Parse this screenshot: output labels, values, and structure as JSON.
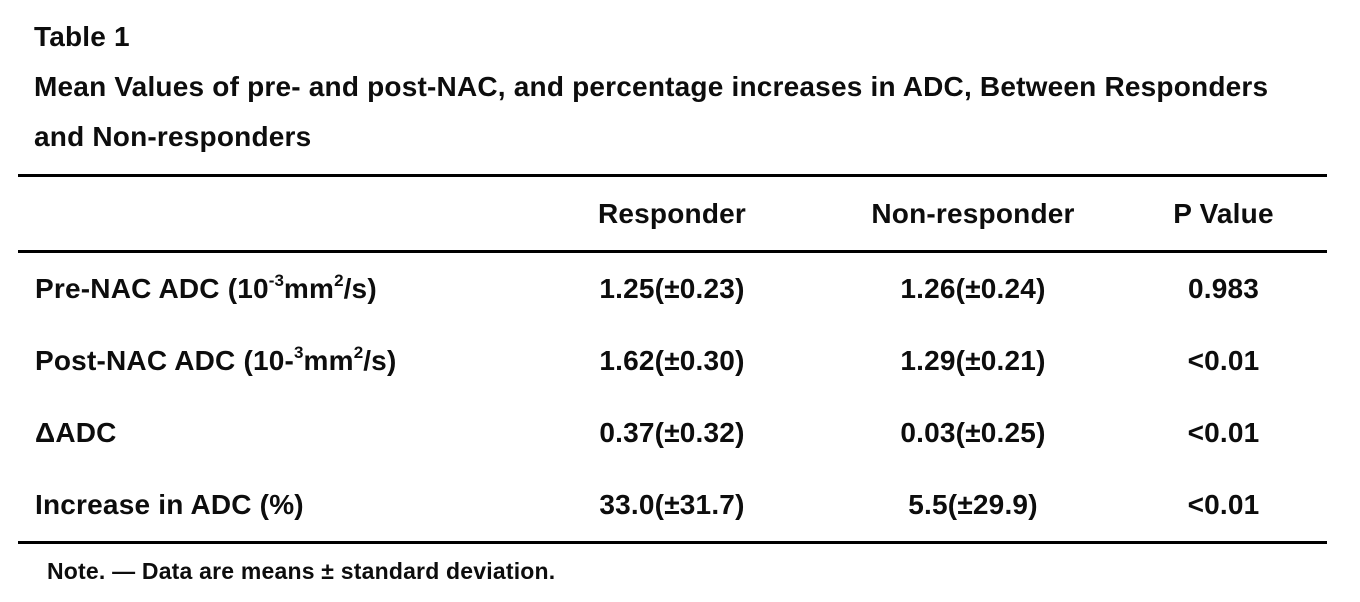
{
  "table": {
    "label": "Table 1",
    "caption_line1": "Mean Values of pre- and post-NAC, and percentage increases in ADC, Between Responders",
    "caption_line2": "and Non-responders",
    "columns": [
      "",
      "Responder",
      "Non-responder",
      "P Value"
    ],
    "rows": [
      {
        "label": {
          "pre": "Pre-NAC ADC (10",
          "sup1": "-3",
          "mid": "mm",
          "sup2": "2",
          "post": "/s)"
        },
        "responder": "1.25(±0.23)",
        "nonresponder": "1.26(±0.24)",
        "p": "0.983"
      },
      {
        "label": {
          "pre": "Post-NAC ADC (10-",
          "sup1": "3",
          "mid": "mm",
          "sup2": "2",
          "post": "/s)"
        },
        "responder": "1.62(±0.30)",
        "nonresponder": "1.29(±0.21)",
        "p": "<0.01"
      },
      {
        "label": {
          "pre": "ΔADC"
        },
        "responder": "0.37(±0.32)",
        "nonresponder": "0.03(±0.25)",
        "p": "<0.01"
      },
      {
        "label": {
          "pre": "Increase in ADC (%)"
        },
        "responder": "33.0(±31.7)",
        "nonresponder": "5.5(±29.9)",
        "p": "<0.01"
      }
    ],
    "note": "Note. — Data are means ± standard deviation.",
    "text_color": "#0d0d0d",
    "rule_color": "#000000"
  }
}
